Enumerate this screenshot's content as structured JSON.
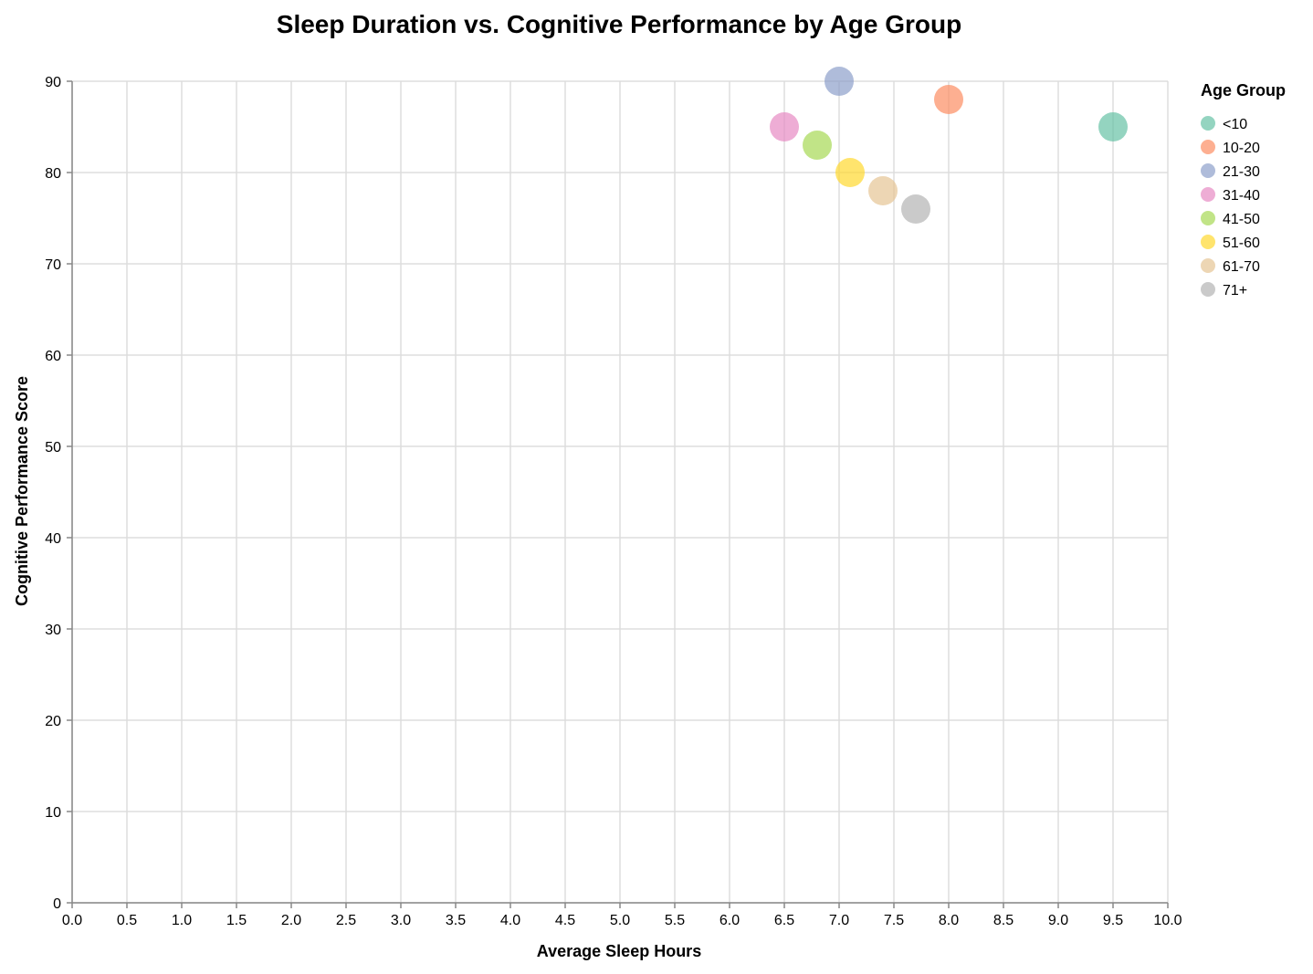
{
  "chart_data": {
    "type": "scatter",
    "title": "Sleep Duration vs. Cognitive Performance by Age Group",
    "xlabel": "Average Sleep Hours",
    "ylabel": "Cognitive Performance Score",
    "xlim": [
      0,
      10
    ],
    "ylim": [
      0,
      90
    ],
    "x_ticks": [
      "0.0",
      "0.5",
      "1.0",
      "1.5",
      "2.0",
      "2.5",
      "3.0",
      "3.5",
      "4.0",
      "4.5",
      "5.0",
      "5.5",
      "6.0",
      "6.5",
      "7.0",
      "7.5",
      "8.0",
      "8.5",
      "9.0",
      "9.5",
      "10.0"
    ],
    "y_ticks": [
      "0",
      "10",
      "20",
      "30",
      "40",
      "50",
      "60",
      "70",
      "80",
      "90"
    ],
    "grid": true,
    "legend": {
      "title": "Age Group",
      "placement": "right"
    },
    "series": [
      {
        "name": "<10",
        "color": "#66c2a5",
        "x": 9.5,
        "y": 85
      },
      {
        "name": "10-20",
        "color": "#fc8d62",
        "x": 8.0,
        "y": 88
      },
      {
        "name": "21-30",
        "color": "#8da0cb",
        "x": 7.0,
        "y": 90
      },
      {
        "name": "31-40",
        "color": "#e78ac3",
        "x": 6.5,
        "y": 85
      },
      {
        "name": "41-50",
        "color": "#a6d854",
        "x": 6.8,
        "y": 83
      },
      {
        "name": "51-60",
        "color": "#ffd92f",
        "x": 7.1,
        "y": 80
      },
      {
        "name": "61-70",
        "color": "#e5c494",
        "x": 7.4,
        "y": 78
      },
      {
        "name": "71+",
        "color": "#b3b3b3",
        "x": 7.7,
        "y": 76
      }
    ]
  }
}
